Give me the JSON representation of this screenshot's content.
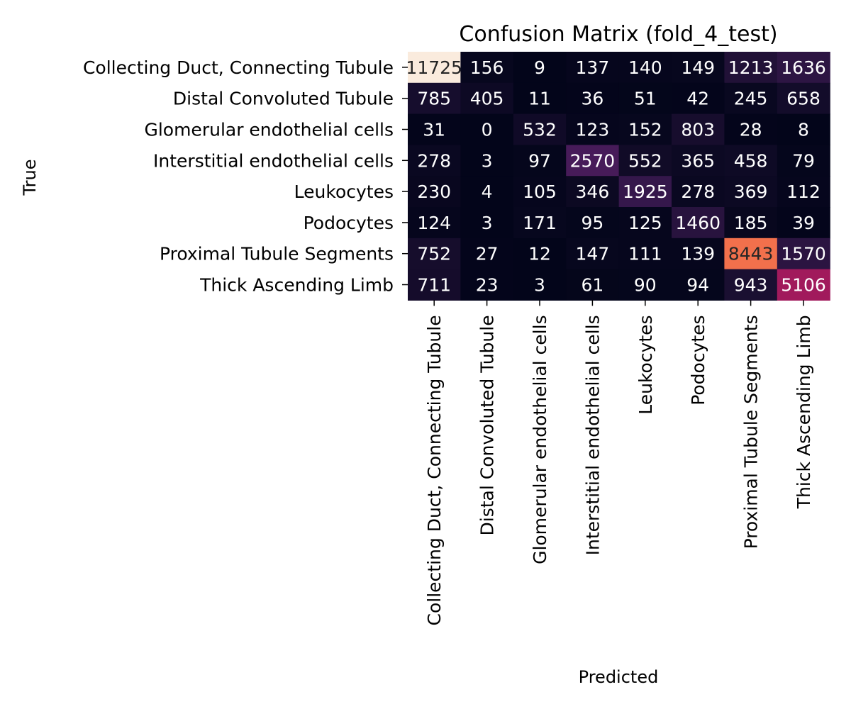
{
  "chart_data": {
    "type": "heatmap",
    "title": "Confusion Matrix (fold_4_test)",
    "xlabel": "Predicted",
    "ylabel": "True",
    "rows": [
      "Collecting Duct, Connecting Tubule",
      "Distal Convoluted Tubule",
      "Glomerular endothelial cells",
      "Interstitial endothelial cells",
      "Leukocytes",
      "Podocytes",
      "Proximal Tubule Segments",
      "Thick Ascending Limb"
    ],
    "columns": [
      "Collecting Duct, Connecting Tubule",
      "Distal Convoluted Tubule",
      "Glomerular endothelial cells",
      "Interstitial endothelial cells",
      "Leukocytes",
      "Podocytes",
      "Proximal Tubule Segments",
      "Thick Ascending Limb"
    ],
    "values": [
      [
        11725,
        156,
        9,
        137,
        140,
        149,
        1213,
        1636
      ],
      [
        785,
        405,
        11,
        36,
        51,
        42,
        245,
        658
      ],
      [
        31,
        0,
        532,
        123,
        152,
        803,
        28,
        8
      ],
      [
        278,
        3,
        97,
        2570,
        552,
        365,
        458,
        79
      ],
      [
        230,
        4,
        105,
        346,
        1925,
        278,
        369,
        112
      ],
      [
        124,
        3,
        171,
        95,
        125,
        1460,
        185,
        39
      ],
      [
        752,
        27,
        12,
        147,
        111,
        139,
        8443,
        1570
      ],
      [
        711,
        23,
        3,
        61,
        90,
        94,
        943,
        5106
      ]
    ],
    "value_range": [
      0,
      11725
    ],
    "colormap": "rocket",
    "colorbar": false
  }
}
